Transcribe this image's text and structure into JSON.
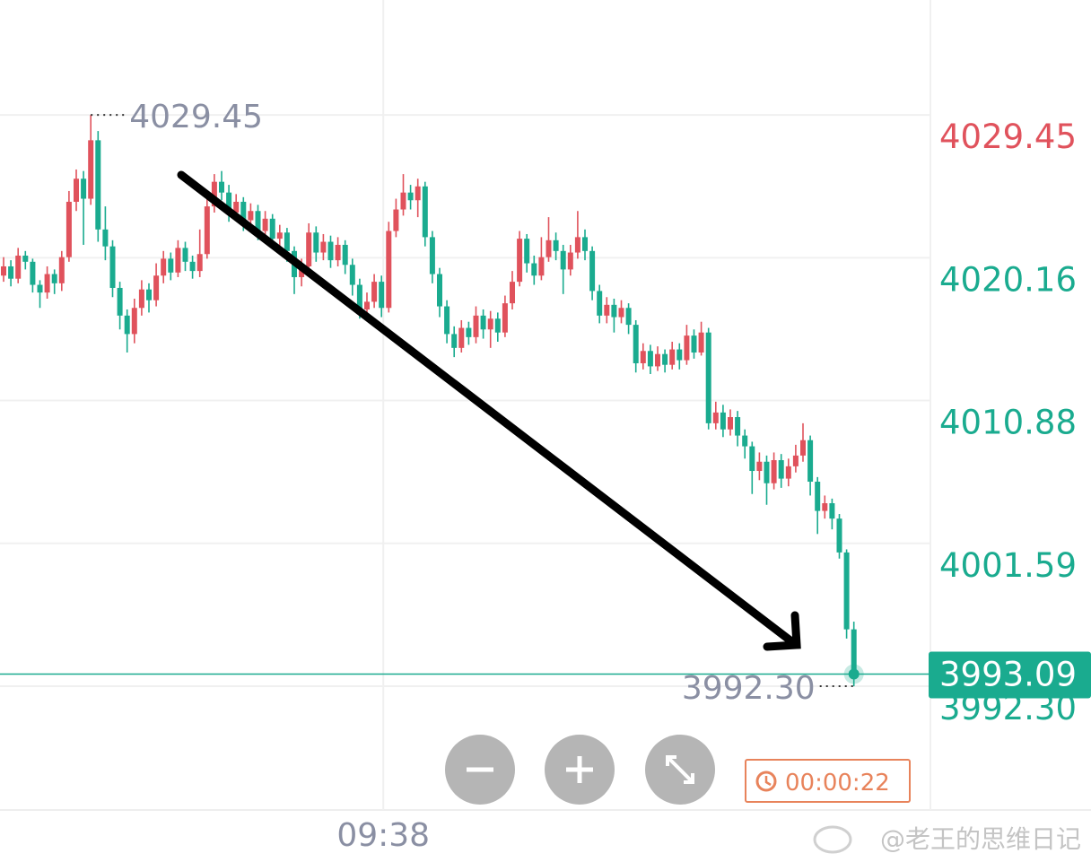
{
  "chart_data": {
    "type": "candlestick",
    "up_color": "#e0525c",
    "down_color": "#1aab8f",
    "ylim": [
      3984.43,
      4036.92
    ],
    "yticks": [
      4029.45,
      4020.16,
      4010.88,
      4001.59,
      {
        "value": 3992.3,
        "label": "3992.30"
      }
    ],
    "ytick_colors": [
      "#e0525c",
      "#1aab8f",
      "#1aab8f",
      "#1aab8f",
      "#1aab8f"
    ],
    "grid": true,
    "high_marker": 4029.45,
    "low_marker": {
      "value": 3992.3,
      "label": "3992.30"
    },
    "last_price": 3993.09,
    "categories": [
      null,
      null,
      null,
      null,
      null,
      null,
      null,
      null,
      null,
      null,
      null,
      null,
      null,
      null,
      null,
      null,
      null,
      null,
      null,
      null,
      null,
      null,
      null,
      null,
      null,
      null,
      null,
      null,
      null,
      null,
      null,
      null,
      null,
      null,
      null,
      null,
      null,
      null,
      null,
      null,
      null,
      null,
      null,
      null,
      null,
      null,
      null,
      null,
      null,
      null,
      null,
      null,
      "09:38",
      null,
      null,
      null,
      null,
      null,
      null,
      null,
      null,
      null,
      null,
      null,
      null,
      null,
      null,
      null,
      null,
      null,
      null,
      null,
      null,
      null,
      null,
      null,
      null,
      null,
      null,
      null,
      null,
      null,
      null,
      null,
      null,
      null,
      null,
      null,
      null,
      null,
      null,
      null,
      null,
      null,
      null,
      null,
      null,
      null,
      null,
      null,
      null,
      null,
      null,
      null,
      null,
      null,
      null,
      null,
      null,
      null,
      null,
      null,
      null,
      null,
      null,
      null,
      null,
      null
    ],
    "open": [
      4019.0,
      4019.6,
      4018.8,
      4020.3,
      4019.9,
      4018.4,
      4017.9,
      4019.1,
      4018.5,
      4020.2,
      4023.8,
      4025.3,
      4024.0,
      4027.8,
      4022.0,
      4020.9,
      4018.2,
      4016.4,
      4015.2,
      4016.9,
      4018.1,
      4017.4,
      4019.0,
      4020.1,
      4019.2,
      4020.8,
      4019.9,
      4019.3,
      4020.4,
      4023.5,
      4025.1,
      4024.4,
      4023.1,
      4023.8,
      4022.6,
      4023.2,
      4021.9,
      4022.7,
      4021.4,
      4021.8,
      4020.6,
      4018.9,
      4019.6,
      4021.8,
      4020.5,
      4021.2,
      4020.0,
      4021.0,
      4019.7,
      4018.4,
      4016.8,
      4017.3,
      4018.6,
      4016.9,
      4021.9,
      4023.3,
      4024.4,
      4023.9,
      4024.8,
      4021.5,
      4019.1,
      4017.0,
      4015.2,
      4014.3,
      4015.6,
      4015.0,
      4016.4,
      4015.5,
      4016.2,
      4015.3,
      4017.2,
      4018.6,
      4021.4,
      4019.8,
      4019.0,
      4020.2,
      4021.3,
      4020.6,
      4019.4,
      4020.5,
      4021.5,
      4020.6,
      4018.0,
      4016.4,
      4017.1,
      4016.3,
      4016.9,
      4015.8,
      4013.3,
      4014.1,
      4013.1,
      4013.9,
      4013.2,
      4014.2,
      4013.5,
      4015.1,
      4014.0,
      4015.3,
      4009.4,
      4010.1,
      4009.0,
      4009.8,
      4008.6,
      4007.9,
      4006.3,
      4006.9,
      4005.5,
      4007.0,
      4005.8,
      4006.6,
      4007.3,
      4008.3,
      4005.6,
      4003.7,
      4004.2,
      4003.2,
      4001.0,
      3996.0
    ],
    "high": [
      4020.2,
      4020.0,
      4020.8,
      4020.6,
      4020.1,
      4018.7,
      4019.6,
      4019.4,
      4020.6,
      4024.5,
      4025.9,
      4025.8,
      4029.45,
      4028.4,
      4023.5,
      4021.3,
      4018.6,
      4016.8,
      4017.5,
      4018.7,
      4018.5,
      4019.8,
      4020.6,
      4020.5,
      4021.3,
      4021.2,
      4020.3,
      4022.0,
      4024.0,
      4025.6,
      4025.8,
      4024.9,
      4024.3,
      4024.1,
      4023.7,
      4023.6,
      4023.2,
      4023.0,
      4022.3,
      4022.1,
      4020.9,
      4020.1,
      4022.4,
      4022.2,
      4021.7,
      4021.6,
      4021.5,
      4021.3,
      4020.1,
      4018.8,
      4017.9,
      4019.1,
      4019.0,
      4022.5,
      4024.0,
      4025.6,
      4024.9,
      4025.3,
      4025.1,
      4021.9,
      4019.5,
      4017.4,
      4015.7,
      4016.1,
      4016.0,
      4017.0,
      4016.8,
      4016.7,
      4016.6,
      4017.7,
      4019.3,
      4021.9,
      4021.7,
      4020.3,
      4021.5,
      4022.8,
      4021.8,
      4021.0,
      4021.0,
      4023.2,
      4022.0,
      4020.9,
      4018.4,
      4017.6,
      4017.5,
      4017.4,
      4017.2,
      4016.1,
      4014.6,
      4014.5,
      4014.4,
      4014.2,
      4014.7,
      4014.6,
      4015.8,
      4015.5,
      4016.0,
      4015.6,
      4010.8,
      4010.6,
      4010.3,
      4010.2,
      4009.0,
      4008.2,
      4007.5,
      4007.3,
      4007.5,
      4007.4,
      4007.1,
      4008.0,
      4009.4,
      4008.6,
      4005.9,
      4004.7,
      4004.5,
      4003.5,
      4001.2,
      3996.5
    ],
    "low": [
      4018.6,
      4018.3,
      4018.5,
      4019.4,
      4017.9,
      4016.9,
      4017.5,
      4017.8,
      4018.0,
      4019.9,
      4023.2,
      4021.0,
      4023.6,
      4021.2,
      4020.0,
      4017.6,
      4015.5,
      4014.0,
      4014.6,
      4016.4,
      4016.6,
      4017.0,
      4018.5,
      4018.7,
      4018.9,
      4019.3,
      4018.8,
      4018.9,
      4020.1,
      4023.1,
      4023.9,
      4022.5,
      4022.6,
      4021.9,
      4022.1,
      4021.3,
      4021.5,
      4020.8,
      4020.9,
      4019.9,
      4017.8,
      4018.3,
      4019.2,
      4019.9,
      4020.0,
      4019.5,
      4019.6,
      4019.1,
      4017.7,
      4016.2,
      4016.3,
      4016.9,
      4016.3,
      4016.6,
      4021.5,
      4022.9,
      4023.3,
      4022.8,
      4020.9,
      4018.5,
      4016.3,
      4014.6,
      4013.7,
      4014.0,
      4014.5,
      4014.6,
      4014.9,
      4014.3,
      4014.7,
      4015.0,
      4016.8,
      4018.3,
      4019.2,
      4018.4,
      4018.7,
      4019.9,
      4020.0,
      4017.8,
      4019.0,
      4020.1,
      4020.0,
      4017.4,
      4015.9,
      4015.9,
      4015.3,
      4015.9,
      4015.2,
      4012.7,
      4012.9,
      4012.6,
      4012.8,
      4012.7,
      4012.9,
      4012.9,
      4013.2,
      4013.6,
      4013.8,
      4009.0,
      4009.0,
      4008.5,
      4008.6,
      4007.9,
      4007.1,
      4004.8,
      4005.7,
      4004.1,
      4005.1,
      4005.2,
      4005.3,
      4006.2,
      4006.9,
      4004.7,
      4002.2,
      4003.2,
      4002.5,
      4000.6,
      3995.4,
      3992.3
    ],
    "close": [
      4019.6,
      4018.8,
      4020.3,
      4019.9,
      4018.4,
      4017.9,
      4019.1,
      4018.5,
      4020.2,
      4023.8,
      4025.3,
      4024.0,
      4027.8,
      4022.0,
      4020.9,
      4018.2,
      4016.4,
      4015.2,
      4016.9,
      4018.1,
      4017.4,
      4019.0,
      4020.1,
      4019.2,
      4020.8,
      4019.9,
      4019.3,
      4020.4,
      4023.5,
      4025.1,
      4024.4,
      4023.1,
      4023.8,
      4022.6,
      4023.2,
      4021.9,
      4022.7,
      4021.4,
      4021.8,
      4020.6,
      4018.9,
      4019.6,
      4021.8,
      4020.5,
      4021.2,
      4020.0,
      4021.0,
      4019.7,
      4018.4,
      4016.8,
      4017.3,
      4018.6,
      4016.9,
      4021.9,
      4023.3,
      4024.4,
      4023.9,
      4024.8,
      4021.5,
      4019.1,
      4017.0,
      4015.2,
      4014.3,
      4015.6,
      4015.0,
      4016.4,
      4015.5,
      4016.2,
      4015.3,
      4017.2,
      4018.6,
      4021.4,
      4019.8,
      4019.0,
      4020.2,
      4021.3,
      4020.6,
      4019.4,
      4020.5,
      4021.5,
      4020.6,
      4018.0,
      4016.4,
      4017.1,
      4016.3,
      4016.9,
      4015.8,
      4013.3,
      4014.1,
      4013.1,
      4013.9,
      4013.2,
      4014.2,
      4013.5,
      4015.1,
      4014.0,
      4015.3,
      4009.4,
      4010.1,
      4009.0,
      4009.8,
      4008.6,
      4007.9,
      4006.3,
      4006.9,
      4005.5,
      4007.0,
      4005.8,
      4006.6,
      4007.3,
      4008.3,
      4005.6,
      4003.7,
      4004.2,
      4003.2,
      4001.0,
      3996.0,
      3993.09
    ],
    "timer": "00:00:22",
    "watermark": "@老王的思维日记"
  }
}
